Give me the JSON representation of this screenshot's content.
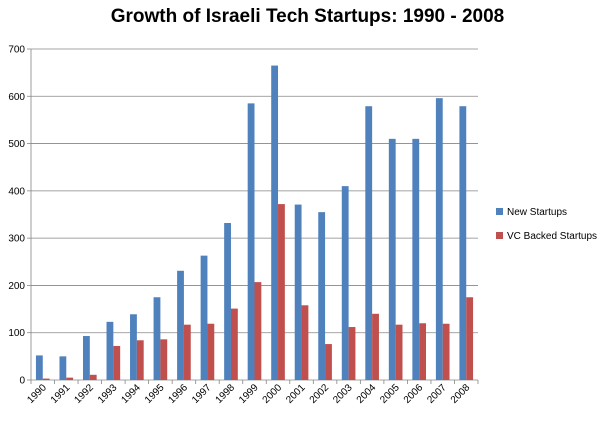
{
  "chart_data": {
    "type": "bar",
    "title": "Growth of Israeli Tech Startups: 1990 - 2008",
    "xlabel": "",
    "ylabel": "",
    "ylim": [
      0,
      700
    ],
    "yticks": [
      0,
      100,
      200,
      300,
      400,
      500,
      600,
      700
    ],
    "grid": true,
    "legend_position": "right",
    "categories": [
      "1990",
      "1991",
      "1992",
      "1993",
      "1994",
      "1995",
      "1996",
      "1997",
      "1998",
      "1999",
      "2000",
      "2001",
      "2002",
      "2003",
      "2004",
      "2005",
      "2006",
      "2007",
      "2008"
    ],
    "series": [
      {
        "name": "New Startups",
        "color": "#4f81bd",
        "values": [
          52,
          50,
          93,
          123,
          139,
          175,
          231,
          263,
          332,
          585,
          665,
          371,
          355,
          410,
          579,
          510,
          510,
          596,
          579
        ]
      },
      {
        "name": "VC Backed Startups",
        "color": "#c0504d",
        "values": [
          3,
          5,
          11,
          72,
          84,
          86,
          117,
          119,
          151,
          207,
          372,
          158,
          76,
          112,
          140,
          117,
          120,
          119,
          175
        ]
      }
    ]
  }
}
